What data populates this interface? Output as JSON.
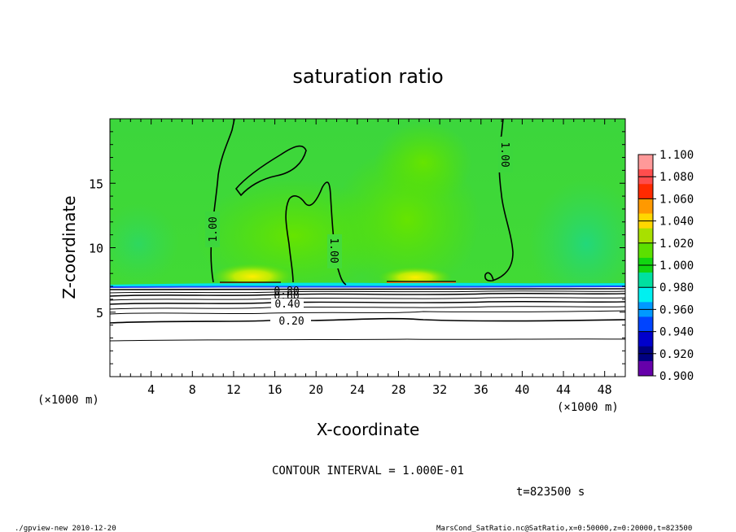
{
  "chart_data": {
    "type": "heatmap",
    "title": "saturation ratio",
    "xlabel": "X-coordinate",
    "ylabel": "Z-coordinate",
    "x_unit_left": "(×1000 m)",
    "x_unit_right": "(×1000 m)",
    "xlim": [
      0,
      50
    ],
    "ylim": [
      0,
      20
    ],
    "x_ticks": [
      "4",
      "8",
      "12",
      "16",
      "20",
      "24",
      "28",
      "32",
      "36",
      "40",
      "44",
      "48"
    ],
    "y_ticks": [
      "5",
      "10",
      "15"
    ],
    "contour_labels": [
      "1.00",
      "1.00",
      "1.00",
      "0.80",
      "0.60",
      "0.40",
      "0.20"
    ],
    "colorbar": {
      "levels": [
        "1.100",
        "1.080",
        "1.060",
        "1.040",
        "1.020",
        "1.000",
        "0.980",
        "0.960",
        "0.940",
        "0.920",
        "0.900"
      ],
      "colors": [
        "#ff9999",
        "#ff4d4d",
        "#ff2a00",
        "#ff9900",
        "#ffd700",
        "#a8e000",
        "#5ce000",
        "#11d611",
        "#00e0a0",
        "#00f0f0",
        "#0099ff",
        "#0044ff",
        "#0000cc",
        "#000080",
        "#6600aa"
      ]
    },
    "contour_interval": "CONTOUR INTERVAL = 1.000E-01",
    "time": "t=823500 s"
  },
  "footer": {
    "left": "./gpview-new   2010-12-20",
    "right": "MarsCond_SatRatio.nc@SatRatio,x=0:50000,z=0:20000,t=823500"
  }
}
